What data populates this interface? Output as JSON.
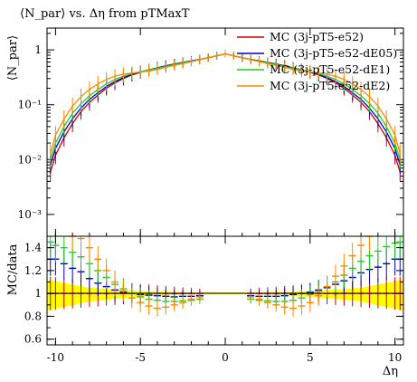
{
  "chart_data": [
    {
      "type": "line",
      "title": "⟨N_par⟩ vs. Δη from pTMaxT",
      "ylabel": "⟨N_par⟩",
      "xlabel": "",
      "xlim": [
        -10.5,
        10.5
      ],
      "ylim": [
        0.0004,
        2.5
      ],
      "yscale": "log",
      "ytick_labels": [
        "1",
        "10⁻¹",
        "10⁻²",
        "10⁻³"
      ],
      "yticks": [
        1,
        0.1,
        0.01,
        0.001
      ],
      "legend_position": "top-right",
      "x": [
        -10.3,
        -10.0,
        -9.5,
        -9.0,
        -8.5,
        -8.0,
        -7.5,
        -7.0,
        -6.5,
        -6.0,
        -5.5,
        -5.0,
        -4.5,
        -4.0,
        -3.5,
        -3.0,
        -2.5,
        -2.0,
        -1.5,
        -1.0,
        -0.5,
        0.0,
        0.5,
        1.0,
        1.5,
        2.0,
        2.5,
        3.0,
        3.5,
        4.0,
        4.5,
        5.0,
        5.5,
        6.0,
        6.5,
        7.0,
        7.5,
        8.0,
        8.5,
        9.0,
        9.5,
        10.0,
        10.3
      ],
      "series": [
        {
          "name": "MC (3j-pT5-e52)",
          "color": "#cc0000",
          "values": [
            0.006,
            0.012,
            0.025,
            0.045,
            0.075,
            0.11,
            0.15,
            0.2,
            0.25,
            0.3,
            0.35,
            0.39,
            0.43,
            0.47,
            0.51,
            0.55,
            0.59,
            0.63,
            0.67,
            0.72,
            0.78,
            0.85,
            0.78,
            0.72,
            0.67,
            0.63,
            0.59,
            0.55,
            0.51,
            0.47,
            0.43,
            0.39,
            0.35,
            0.3,
            0.25,
            0.2,
            0.15,
            0.11,
            0.075,
            0.045,
            0.025,
            0.012,
            0.006
          ]
        },
        {
          "name": "MC (3j-pT5-e52-dE05)",
          "color": "#0000cc",
          "values": [
            0.008,
            0.016,
            0.032,
            0.055,
            0.087,
            0.125,
            0.165,
            0.215,
            0.265,
            0.31,
            0.355,
            0.395,
            0.43,
            0.47,
            0.51,
            0.55,
            0.59,
            0.63,
            0.67,
            0.72,
            0.78,
            0.85,
            0.78,
            0.72,
            0.67,
            0.63,
            0.59,
            0.55,
            0.51,
            0.47,
            0.43,
            0.395,
            0.355,
            0.31,
            0.265,
            0.215,
            0.165,
            0.125,
            0.087,
            0.055,
            0.032,
            0.016,
            0.008
          ]
        },
        {
          "name": "MC (3j-pT5-e52-dE1)",
          "color": "#22cc22",
          "values": [
            0.01,
            0.02,
            0.04,
            0.07,
            0.105,
            0.145,
            0.19,
            0.24,
            0.29,
            0.33,
            0.37,
            0.4,
            0.43,
            0.46,
            0.5,
            0.54,
            0.58,
            0.62,
            0.67,
            0.72,
            0.78,
            0.85,
            0.78,
            0.72,
            0.67,
            0.62,
            0.58,
            0.54,
            0.5,
            0.46,
            0.43,
            0.4,
            0.37,
            0.33,
            0.29,
            0.24,
            0.19,
            0.145,
            0.105,
            0.07,
            0.04,
            0.02,
            0.01
          ]
        },
        {
          "name": "MC (3j-pT5-e52-dE2)",
          "color": "#ff8800",
          "values": [
            0.013,
            0.028,
            0.055,
            0.095,
            0.14,
            0.19,
            0.24,
            0.29,
            0.33,
            0.36,
            0.38,
            0.395,
            0.41,
            0.44,
            0.48,
            0.52,
            0.56,
            0.61,
            0.66,
            0.72,
            0.78,
            0.85,
            0.78,
            0.72,
            0.66,
            0.61,
            0.56,
            0.52,
            0.48,
            0.44,
            0.41,
            0.395,
            0.38,
            0.36,
            0.33,
            0.29,
            0.24,
            0.19,
            0.14,
            0.095,
            0.055,
            0.028,
            0.013
          ]
        }
      ]
    },
    {
      "type": "line",
      "ylabel": "MC/data",
      "xlabel": "Δη",
      "xlim": [
        -10.5,
        10.5
      ],
      "ylim": [
        0.55,
        1.5
      ],
      "yticks": [
        0.6,
        0.8,
        1,
        1.2,
        1.4
      ],
      "ytick_labels": [
        "0.6",
        "0.8",
        "1",
        "1.2",
        "1.4"
      ],
      "xticks": [
        -10,
        -5,
        0,
        5,
        10
      ],
      "xtick_labels": [
        "-10",
        "-5",
        "0",
        "5",
        "10"
      ],
      "x": [
        -10.3,
        -10.0,
        -9.5,
        -9.0,
        -8.5,
        -8.0,
        -7.5,
        -7.0,
        -6.5,
        -6.0,
        -5.5,
        -5.0,
        -4.5,
        -4.0,
        -3.5,
        -3.0,
        -2.5,
        -2.0,
        -1.5,
        1.5,
        2.0,
        2.5,
        3.0,
        3.5,
        4.0,
        4.5,
        5.0,
        5.5,
        6.0,
        6.5,
        7.0,
        7.5,
        8.0,
        8.5,
        9.0,
        9.5,
        10.0,
        10.3
      ],
      "band": {
        "color": "#ffff00",
        "x": [
          -10.5,
          -8,
          -6,
          -4,
          -2,
          0,
          2,
          4,
          6,
          8,
          10.5
        ],
        "upper": [
          1.12,
          1.05,
          1.03,
          1.015,
          1.01,
          1.01,
          1.01,
          1.015,
          1.03,
          1.05,
          1.12
        ],
        "lower": [
          0.85,
          0.93,
          0.96,
          0.98,
          0.99,
          0.99,
          0.99,
          0.98,
          0.96,
          0.93,
          0.85
        ]
      },
      "series": [
        {
          "name": "MC (3j-pT5-e52)",
          "color": "#cc0000",
          "values": [
            1.0,
            1.0,
            1.0,
            1.0,
            1.0,
            1.0,
            1.0,
            1.0,
            1.0,
            1.0,
            1.0,
            1.0,
            1.0,
            1.0,
            1.0,
            1.0,
            1.0,
            1.0,
            1.0,
            1.0,
            1.0,
            1.0,
            1.0,
            1.0,
            1.0,
            1.0,
            1.0,
            1.0,
            1.0,
            1.0,
            1.0,
            1.0,
            1.0,
            1.0,
            1.0,
            1.0,
            1.0,
            1.0
          ]
        },
        {
          "name": "MC (3j-pT5-e52-dE05)",
          "color": "#0000cc",
          "values": [
            1.3,
            1.3,
            1.26,
            1.22,
            1.19,
            1.13,
            1.09,
            1.06,
            1.03,
            1.01,
            1.0,
            0.99,
            0.985,
            0.98,
            0.975,
            0.97,
            0.975,
            0.975,
            0.98,
            0.98,
            0.975,
            0.975,
            0.975,
            0.98,
            0.99,
            1.0,
            1.01,
            1.03,
            1.05,
            1.08,
            1.11,
            1.14,
            1.18,
            1.21,
            1.23,
            1.26,
            1.3,
            1.3
          ]
        },
        {
          "name": "MC (3j-pT5-e52-dE1)",
          "color": "#22cc22",
          "values": [
            1.45,
            1.42,
            1.4,
            1.36,
            1.32,
            1.26,
            1.2,
            1.14,
            1.08,
            1.04,
            1.0,
            0.97,
            0.95,
            0.94,
            0.93,
            0.93,
            0.935,
            0.94,
            0.95,
            0.95,
            0.94,
            0.935,
            0.93,
            0.93,
            0.94,
            0.96,
            0.99,
            1.02,
            1.06,
            1.1,
            1.16,
            1.22,
            1.28,
            1.33,
            1.37,
            1.41,
            1.44,
            1.45
          ]
        },
        {
          "name": "MC (3j-pT5-e52-dE2)",
          "color": "#ff8800",
          "values": [
            1.6,
            1.6,
            1.55,
            1.5,
            1.48,
            1.4,
            1.3,
            1.2,
            1.1,
            1.02,
            0.96,
            0.92,
            0.89,
            0.87,
            0.88,
            0.9,
            0.92,
            0.95,
            0.97,
            0.97,
            0.95,
            0.92,
            0.9,
            0.88,
            0.87,
            0.89,
            0.92,
            0.98,
            1.06,
            1.15,
            1.24,
            1.33,
            1.42,
            1.5,
            1.55,
            1.58,
            1.6,
            1.6
          ]
        }
      ]
    }
  ]
}
